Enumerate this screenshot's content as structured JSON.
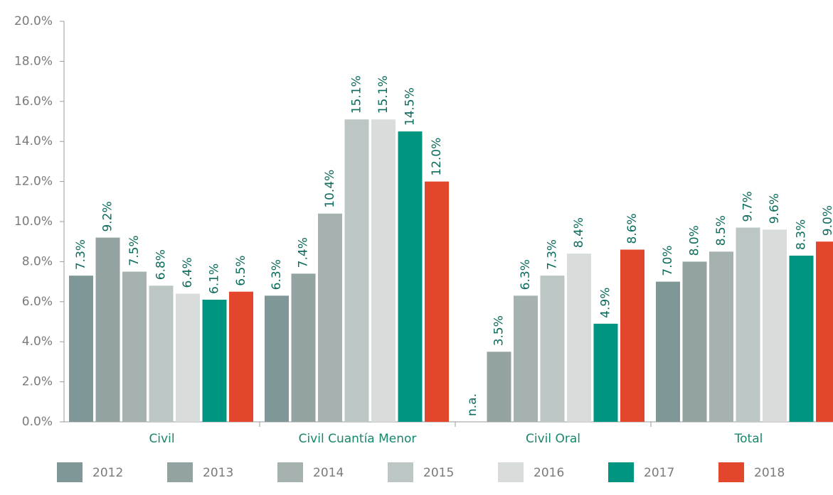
{
  "chart_data": {
    "type": "bar",
    "categories": [
      "Civil",
      "Civil Cuantía Menor",
      "Civil Oral",
      "Total"
    ],
    "series": [
      {
        "name": "2012",
        "color": "#7f9796",
        "values": [
          7.3,
          6.3,
          null,
          7.0
        ],
        "value_labels": [
          "7.3%",
          "6.3%",
          "n.a.",
          "7.0%"
        ]
      },
      {
        "name": "2013",
        "color": "#93a3a1",
        "values": [
          9.2,
          7.4,
          3.5,
          8.0
        ],
        "value_labels": [
          "9.2%",
          "7.4%",
          "3.5%",
          "8.0%"
        ]
      },
      {
        "name": "2014",
        "color": "#a6b2b0",
        "values": [
          7.5,
          10.4,
          6.3,
          8.5
        ],
        "value_labels": [
          "7.5%",
          "10.4%",
          "6.3%",
          "8.5%"
        ]
      },
      {
        "name": "2015",
        "color": "#bcc6c4",
        "values": [
          6.8,
          15.1,
          7.3,
          9.7
        ],
        "value_labels": [
          "6.8%",
          "15.1%",
          "7.3%",
          "9.7%"
        ]
      },
      {
        "name": "2016",
        "color": "#d8dddc",
        "values": [
          6.4,
          15.1,
          8.4,
          9.6
        ],
        "value_labels": [
          "6.4%",
          "15.1%",
          "8.4%",
          "9.6%"
        ]
      },
      {
        "name": "2017",
        "color": "#009580",
        "values": [
          6.1,
          14.5,
          4.9,
          8.3
        ],
        "value_labels": [
          "6.1%",
          "14.5%",
          "4.9%",
          "8.3%"
        ]
      },
      {
        "name": "2018",
        "color": "#e2462b",
        "values": [
          6.5,
          12.0,
          8.6,
          9.0
        ],
        "value_labels": [
          "6.5%",
          "12.0%",
          "8.6%",
          "9.0%"
        ]
      }
    ],
    "ylim": [
      0,
      20
    ],
    "yticks": [
      {
        "value": 0,
        "label": "0.0%"
      },
      {
        "value": 2,
        "label": "2.0%"
      },
      {
        "value": 4,
        "label": "4.0%"
      },
      {
        "value": 6,
        "label": "6.0%"
      },
      {
        "value": 8,
        "label": "8.0%"
      },
      {
        "value": 10,
        "label": "10.0%"
      },
      {
        "value": 12,
        "label": "12.0%"
      },
      {
        "value": 14,
        "label": "14.0%"
      },
      {
        "value": 16,
        "label": "16.0%"
      },
      {
        "value": 18,
        "label": "18.0%"
      },
      {
        "value": 20,
        "label": "20.0%"
      }
    ],
    "legend": "bottom"
  }
}
